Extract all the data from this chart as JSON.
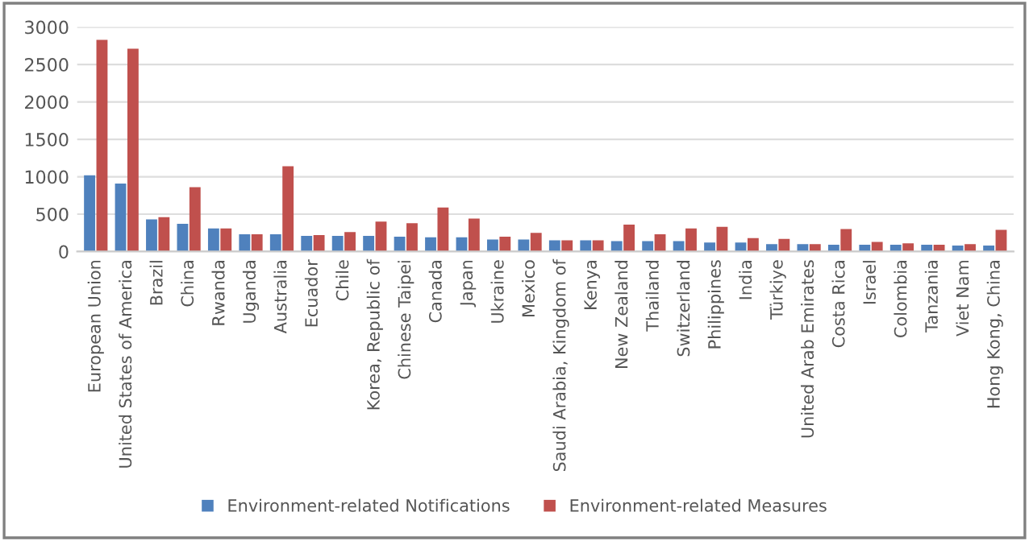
{
  "chart_data": {
    "type": "bar",
    "categories": [
      "European Union",
      "United States of America",
      "Brazil",
      "China",
      "Rwanda",
      "Uganda",
      "Australia",
      "Ecuador",
      "Chile",
      "Korea, Republic of",
      "Chinese Taipei",
      "Canada",
      "Japan",
      "Ukraine",
      "Mexico",
      "Saudi Arabia, Kingdom of",
      "Kenya",
      "New Zealand",
      "Thailand",
      "Switzerland",
      "Philippines",
      "India",
      "Türkiye",
      "United Arab Emirates",
      "Costa Rica",
      "Israel",
      "Colombia",
      "Tanzania",
      "Viet Nam",
      "Hong Kong, China"
    ],
    "series": [
      {
        "name": "Environment-related Notifications",
        "color": "#4f81bd",
        "values": [
          1020,
          910,
          430,
          370,
          310,
          230,
          230,
          210,
          210,
          210,
          200,
          190,
          190,
          160,
          160,
          150,
          150,
          140,
          140,
          140,
          120,
          120,
          100,
          100,
          90,
          90,
          90,
          90,
          80,
          80
        ]
      },
      {
        "name": "Environment-related Measures",
        "color": "#c0504d",
        "values": [
          2830,
          2710,
          460,
          860,
          310,
          230,
          1140,
          220,
          260,
          400,
          380,
          590,
          440,
          200,
          250,
          150,
          150,
          360,
          230,
          310,
          330,
          180,
          170,
          100,
          300,
          130,
          110,
          90,
          100,
          290
        ]
      }
    ],
    "ylim": [
      0,
      3000
    ],
    "yticks": [
      0,
      500,
      1000,
      1500,
      2000,
      2500,
      3000
    ],
    "grid": "y",
    "legend": "bottom"
  }
}
